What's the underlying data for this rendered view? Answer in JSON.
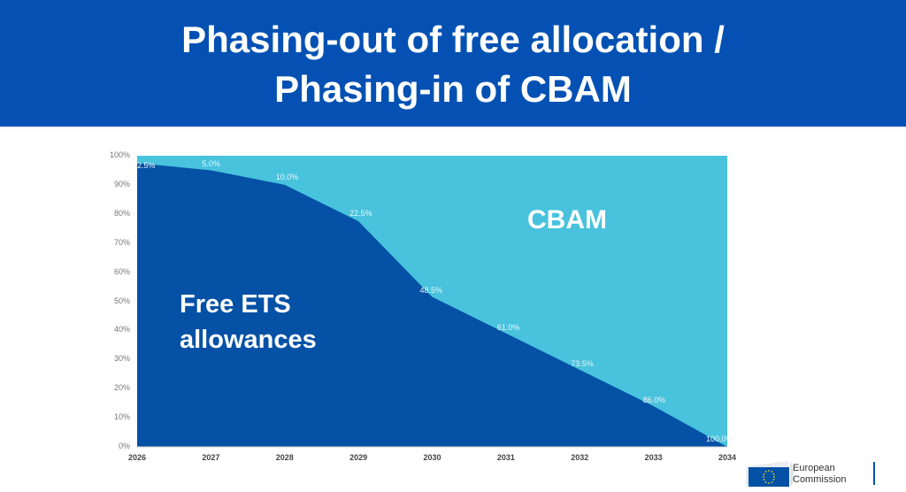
{
  "header": {
    "title_line1": "Phasing-out of free allocation /",
    "title_line2": "Phasing-in of CBAM",
    "bg_color": "#0451b3"
  },
  "chart_data": {
    "type": "area",
    "stacked": true,
    "title": "Phasing-out of free allocation / Phasing-in of CBAM",
    "categories": [
      "2026",
      "2027",
      "2028",
      "2029",
      "2030",
      "2031",
      "2032",
      "2033",
      "2034"
    ],
    "series": [
      {
        "name": "Free ETS allowances",
        "color": "#0451a6",
        "values": [
          97.5,
          95.0,
          90.0,
          77.5,
          51.5,
          39.0,
          26.5,
          14.0,
          0.0
        ]
      },
      {
        "name": "CBAM",
        "color": "#48c2dd",
        "values": [
          2.5,
          5.0,
          10.0,
          22.5,
          48.5,
          61.0,
          73.5,
          86.0,
          100.0
        ]
      }
    ],
    "data_labels": [
      "2.5%",
      "5.0%",
      "10.0%",
      "22.5%",
      "48.5%",
      "61.0%",
      "73.5%",
      "86.0%",
      "100.0%"
    ],
    "yticks": [
      "0%",
      "10%",
      "20%",
      "30%",
      "40%",
      "50%",
      "60%",
      "70%",
      "80%",
      "90%",
      "100%"
    ],
    "ylim": [
      0,
      100
    ],
    "xlabel": "",
    "ylabel": "",
    "grid": false,
    "legend": "in-plot labels",
    "area_labels": {
      "cbam": "CBAM",
      "free_line1": "Free ETS",
      "free_line2": "allowances"
    }
  },
  "logo": {
    "line1": "European",
    "line2": "Commission"
  }
}
